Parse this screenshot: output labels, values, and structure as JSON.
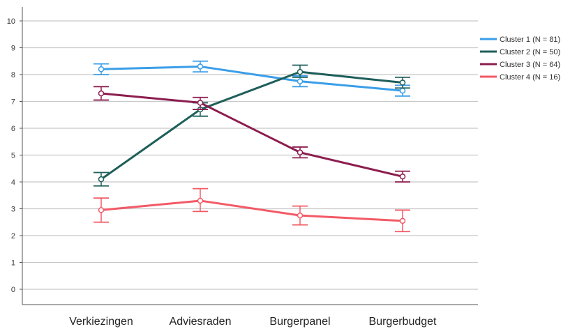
{
  "chart_data": {
    "type": "line",
    "categories": [
      "Verkiezingen",
      "Adviesraden",
      "Burgerpanel",
      "Burgerbudget"
    ],
    "ylim": [
      0,
      10
    ],
    "yticks": [
      0,
      1,
      2,
      3,
      4,
      5,
      6,
      7,
      8,
      9,
      10
    ],
    "grid": true,
    "legend_position": "right",
    "error_bars": true,
    "series": [
      {
        "name": "Cluster 1 (N = 81)",
        "color": "#3a9ee8",
        "values": [
          8.2,
          8.3,
          7.75,
          7.4
        ],
        "lower": [
          8.0,
          8.1,
          7.55,
          7.2
        ],
        "upper": [
          8.4,
          8.5,
          7.95,
          7.6
        ]
      },
      {
        "name": "Cluster 2 (N = 50)",
        "color": "#1e5f5a",
        "values": [
          4.1,
          6.7,
          8.1,
          7.7
        ],
        "lower": [
          3.85,
          6.45,
          7.9,
          7.5
        ],
        "upper": [
          4.35,
          6.95,
          8.35,
          7.9
        ]
      },
      {
        "name": "Cluster 3 (N = 64)",
        "color": "#8c1d4f",
        "values": [
          7.3,
          6.95,
          5.1,
          4.2
        ],
        "lower": [
          7.05,
          6.7,
          4.9,
          4.0
        ],
        "upper": [
          7.55,
          7.15,
          5.3,
          4.4
        ]
      },
      {
        "name": "Cluster 4 (N = 16)",
        "color": "#f25a66",
        "values": [
          2.95,
          3.3,
          2.75,
          2.55
        ],
        "lower": [
          2.5,
          2.9,
          2.4,
          2.15
        ],
        "upper": [
          3.4,
          3.75,
          3.1,
          2.95
        ]
      }
    ]
  }
}
